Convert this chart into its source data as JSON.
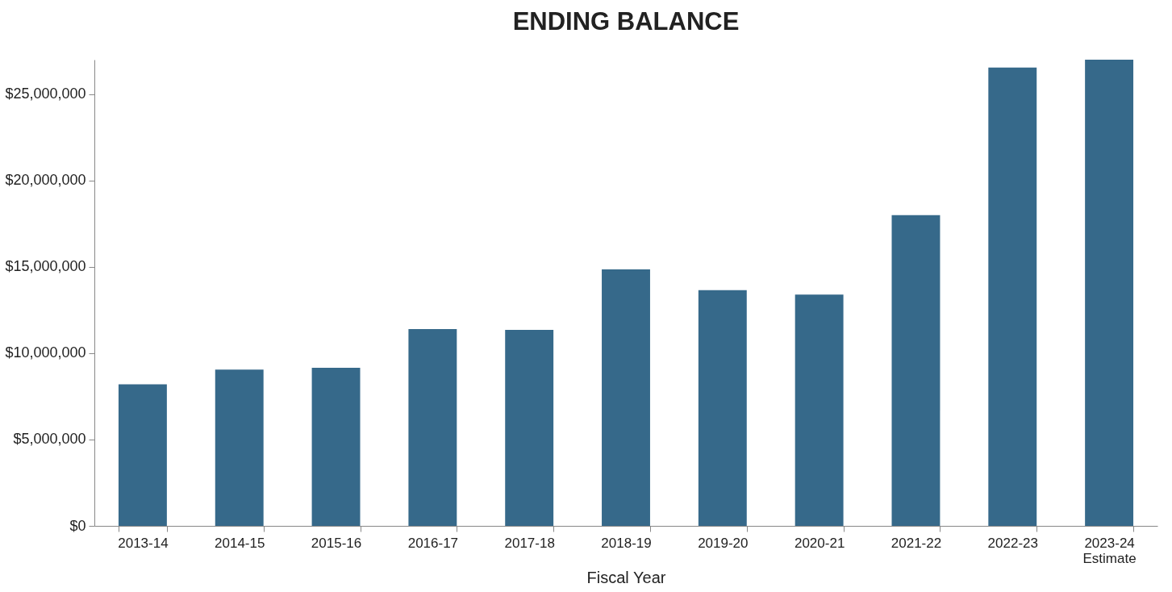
{
  "chart_data": {
    "type": "bar",
    "title": "ENDING BALANCE",
    "xlabel": "Fiscal Year",
    "categories": [
      "2013-14",
      "2014-15",
      "2015-16",
      "2016-17",
      "2017-18",
      "2018-19",
      "2019-20",
      "2020-21",
      "2021-22",
      "2022-23",
      "2023-24\nEstimate"
    ],
    "values": [
      8200000,
      9050000,
      9150000,
      11400000,
      11350000,
      14850000,
      13650000,
      13400000,
      18000000,
      26550000,
      27000000
    ],
    "color": "#36698a",
    "ylim": [
      0,
      27000000
    ],
    "yticks": [
      {
        "value": 0,
        "label": "$0"
      },
      {
        "value": 5000000,
        "label": "$5,000,000"
      },
      {
        "value": 10000000,
        "label": "$10,000,000"
      },
      {
        "value": 15000000,
        "label": "$15,000,000"
      },
      {
        "value": 20000000,
        "label": "$20,000,000"
      },
      {
        "value": 25000000,
        "label": "$25,000,000"
      }
    ],
    "grid": false
  }
}
